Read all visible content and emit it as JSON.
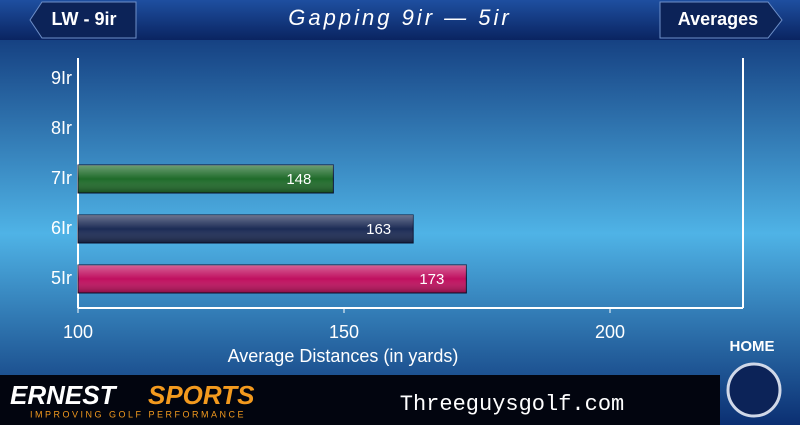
{
  "header": {
    "back_button": "LW - 9ir",
    "title": "Gapping 9ir — 5ir",
    "mode_button": "Averages"
  },
  "chart_data": {
    "type": "hbar",
    "categories": [
      "9Ir",
      "8Ir",
      "7Ir",
      "6Ir",
      "5Ir"
    ],
    "values": [
      null,
      null,
      148,
      163,
      173
    ],
    "colors": [
      null,
      null,
      "#1f6b2a",
      "#1c2b55",
      "#c0105f"
    ],
    "xlabel": "Average Distances (in yards)",
    "xlim": [
      100,
      225
    ],
    "xticks": [
      100,
      150,
      200
    ]
  },
  "home_button": "HOME",
  "footer": {
    "brand_first": "ERNEST",
    "brand_second": "SPORTS",
    "tagline": "IMPROVING GOLF PERFORMANCE",
    "site": "Threeguysgolf.com"
  }
}
